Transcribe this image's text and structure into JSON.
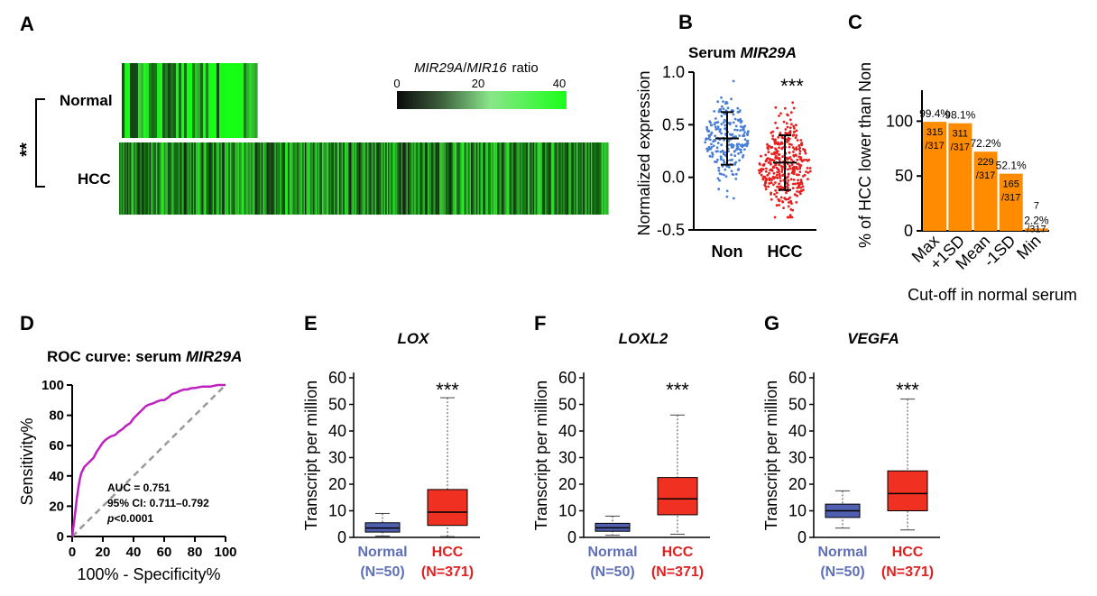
{
  "panels": {
    "A": {
      "label": "A",
      "rows": [
        "Normal",
        "HCC"
      ],
      "significance": "**",
      "legend": {
        "title_gene1": "MIR29A",
        "title_sep": "/",
        "title_gene2": "MIR16",
        "title_suffix": "ratio",
        "ticks": [
          "0",
          "20",
          "40"
        ]
      }
    },
    "B": {
      "label": "B",
      "title_prefix": "Serum ",
      "title_gene": "MIR29A",
      "ylabel": "Normalized expression",
      "yticks": [
        "1.0",
        "0.5",
        "0.0",
        "-0.5"
      ],
      "xticks": [
        "Non",
        "HCC"
      ],
      "significance": "***"
    },
    "C": {
      "label": "C",
      "ylabel": "% of HCC lower than Non",
      "xlabel": "Cut-off in normal serum",
      "yticks": [
        "100",
        "50",
        "0"
      ]
    },
    "D": {
      "label": "D",
      "title_prefix": "ROC curve: serum ",
      "title_gene": "MIR29A",
      "ylabel": "Sensitivity%",
      "xlabel": "100% - Specificity%",
      "ticks": [
        "0",
        "20",
        "40",
        "60",
        "80",
        "100"
      ],
      "auc": "AUC = 0.751",
      "ci": "95% CI: 0.711–0.792",
      "p_italic": "p",
      "p_rest": "<0.0001"
    },
    "E": {
      "label": "E",
      "gene": "LOX"
    },
    "F": {
      "label": "F",
      "gene": "LOXL2"
    },
    "G": {
      "label": "G",
      "gene": "VEGFA"
    },
    "boxplots": {
      "ylabel": "Transcript per million",
      "yticks": [
        "0",
        "10",
        "20",
        "30",
        "40",
        "50",
        "60"
      ],
      "significance": "***",
      "groups": [
        {
          "name": "Normal",
          "n": "(N=50)"
        },
        {
          "name": "HCC",
          "n": "(N=371)"
        }
      ]
    }
  },
  "colors": {
    "non_points": "#4a7fd6",
    "hcc_points": "#e62020",
    "bar": "#ff8c00",
    "roc": "#c020c0",
    "box_normal": "#5060b0",
    "box_hcc": "#f03020",
    "label_normal": "#6070b8",
    "label_hcc": "#e02020"
  },
  "chart_data": [
    {
      "panel": "B",
      "type": "scatter",
      "title": "Serum MIR29A",
      "ylabel": "Normalized expression",
      "ylim": [
        -0.5,
        1.0
      ],
      "categories": [
        "Non",
        "HCC"
      ],
      "summary": [
        {
          "name": "Non",
          "mean": 0.37,
          "sd_low": 0.12,
          "sd_high": 0.62
        },
        {
          "name": "HCC",
          "mean": 0.14,
          "sd_low": -0.12,
          "sd_high": 0.4
        }
      ]
    },
    {
      "panel": "C",
      "type": "bar",
      "ylabel": "% of HCC lower than Non",
      "xlabel": "Cut-off in normal serum",
      "ylim": [
        0,
        125
      ],
      "categories": [
        "Max",
        "+1SD",
        "Mean",
        "-1SD",
        "Min"
      ],
      "values": [
        99.4,
        98.1,
        72.2,
        52.1,
        2.2
      ],
      "pct_labels": [
        "99.4%",
        "98.1%",
        "72.2%",
        "52.1%",
        "2.2%"
      ],
      "count_labels": [
        "315",
        "311",
        "229",
        "165",
        "7"
      ],
      "total_label": "/317"
    },
    {
      "panel": "D",
      "type": "line",
      "title": "ROC curve: serum MIR29A",
      "xlabel": "100% - Specificity%",
      "ylabel": "Sensitivity%",
      "xlim": [
        0,
        100
      ],
      "ylim": [
        0,
        100
      ],
      "x": [
        0,
        1,
        2,
        3,
        4,
        5,
        6,
        7,
        8,
        10,
        12,
        14,
        16,
        18,
        20,
        22,
        25,
        28,
        30,
        33,
        35,
        38,
        40,
        42,
        45,
        48,
        50,
        53,
        55,
        58,
        60,
        63,
        65,
        68,
        70,
        73,
        75,
        78,
        80,
        85,
        90,
        95,
        100
      ],
      "y": [
        0,
        8,
        16,
        25,
        32,
        38,
        42,
        44,
        46,
        48,
        50,
        52,
        56,
        59,
        62,
        64,
        66,
        67,
        69,
        71,
        73,
        75,
        78,
        80,
        83,
        86,
        87,
        88,
        89,
        90,
        90,
        92,
        94,
        95,
        96,
        97,
        97,
        98,
        98,
        99,
        99,
        100,
        100
      ]
    },
    {
      "panel": "E",
      "type": "box",
      "title": "LOX",
      "ylabel": "Transcript per million",
      "ylim": [
        0,
        60
      ],
      "series": [
        {
          "name": "Normal",
          "min": 0.5,
          "q1": 2.0,
          "median": 3.5,
          "q3": 5.5,
          "max": 9.0
        },
        {
          "name": "HCC",
          "min": 0.3,
          "q1": 4.5,
          "median": 9.5,
          "q3": 18.0,
          "max": 52.5
        }
      ]
    },
    {
      "panel": "F",
      "type": "box",
      "title": "LOXL2",
      "ylabel": "Transcript per million",
      "ylim": [
        0,
        60
      ],
      "series": [
        {
          "name": "Normal",
          "min": 0.8,
          "q1": 2.3,
          "median": 3.6,
          "q3": 5.3,
          "max": 8.0
        },
        {
          "name": "HCC",
          "min": 1.2,
          "q1": 8.5,
          "median": 14.5,
          "q3": 22.5,
          "max": 46.0
        }
      ]
    },
    {
      "panel": "G",
      "type": "box",
      "title": "VEGFA",
      "ylabel": "Transcript per million",
      "ylim": [
        0,
        60
      ],
      "series": [
        {
          "name": "Normal",
          "min": 3.5,
          "q1": 7.5,
          "median": 10.0,
          "q3": 12.5,
          "max": 17.5
        },
        {
          "name": "HCC",
          "min": 2.8,
          "q1": 10.0,
          "median": 16.5,
          "q3": 25.0,
          "max": 52.0
        }
      ]
    }
  ]
}
